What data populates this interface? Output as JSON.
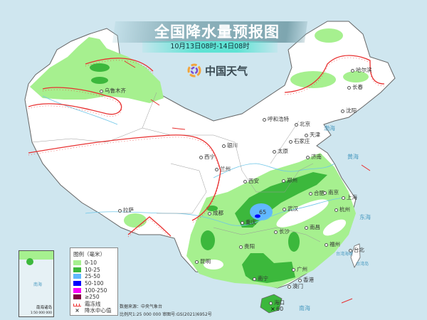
{
  "header": {
    "title": "全国降水量预报图",
    "subtitle": "10月13日08时-14日08时"
  },
  "logo": {
    "text": "中国天气",
    "icon": "china-weather-logo-icon"
  },
  "colors": {
    "sea": "#cfe6ef",
    "land": "#ffffff",
    "rain_0_10": "#a6f08f",
    "rain_10_25": "#3cb83c",
    "rain_25_50": "#61b8ff",
    "rain_50_100": "#0000fe",
    "rain_100_250": "#fa00fa",
    "rain_250_plus": "#800040",
    "frost_line": "#e83030",
    "river": "#6ec6e8"
  },
  "legend": {
    "title": "图例（毫米）",
    "items": [
      {
        "label": "0-10",
        "color": "#a6f08f"
      },
      {
        "label": "10-25",
        "color": "#3cb83c"
      },
      {
        "label": "25-50",
        "color": "#61b8ff"
      },
      {
        "label": "50-100",
        "color": "#0000fe"
      },
      {
        "label": "100-250",
        "color": "#fa00fa"
      },
      {
        "label": "≥250",
        "color": "#800040"
      }
    ],
    "frost_label": "霜冻线",
    "center_label": "降水中心值"
  },
  "footer": {
    "source": "数据来源：中央气象台",
    "scale": "比例尺1:25 000 000   审图号:GS(2021)6952号"
  },
  "inset": {
    "title": "南海诸岛",
    "scale": "1:50 000 000",
    "sea": "南海"
  },
  "cities": [
    "乌鲁木齐",
    "哈尔滨",
    "长春",
    "沈阳",
    "呼和浩特",
    "北京",
    "天津",
    "石家庄",
    "太原",
    "济南",
    "银川",
    "西宁",
    "兰州",
    "西安",
    "郑州",
    "合肥",
    "南京",
    "上海",
    "武汉",
    "杭州",
    "成都",
    "重庆",
    "长沙",
    "南昌",
    "贵阳",
    "福州",
    "台北",
    "昆明",
    "南宁",
    "广州",
    "香港",
    "澳门",
    "海口",
    "拉萨"
  ],
  "seas": [
    "渤海",
    "黄海",
    "东海",
    "南海",
    "台湾海峡",
    "台湾岛"
  ],
  "center_values": [
    "65",
    "60"
  ]
}
